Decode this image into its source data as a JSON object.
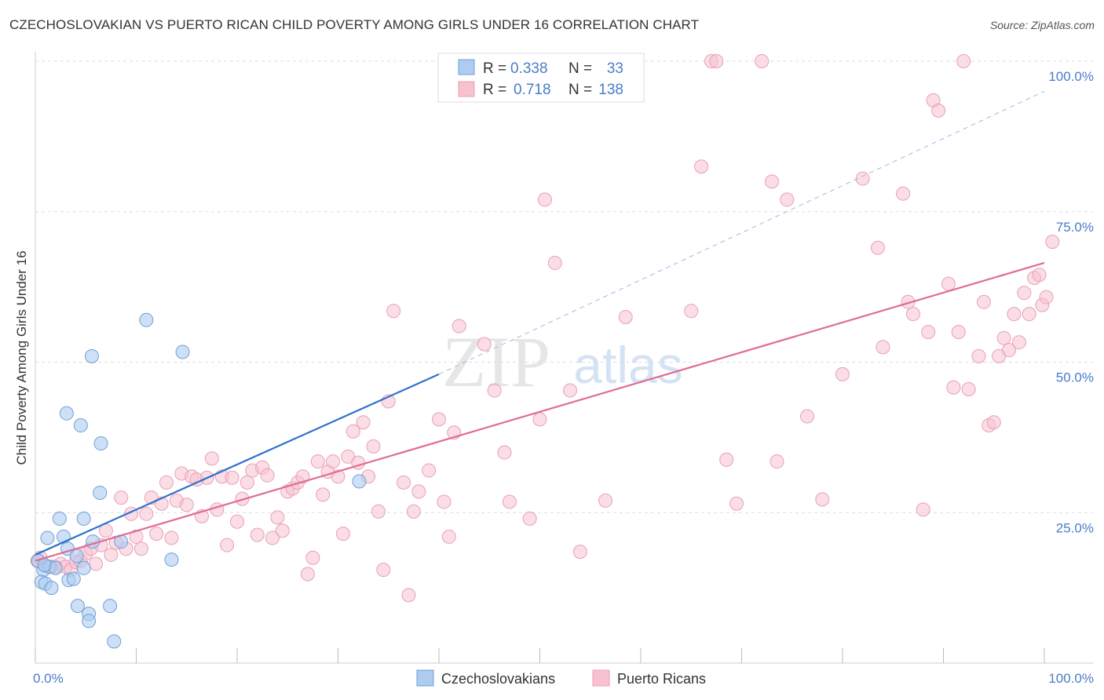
{
  "title": "CZECHOSLOVAKIAN VS PUERTO RICAN CHILD POVERTY AMONG GIRLS UNDER 16 CORRELATION CHART",
  "source": "Source: ZipAtlas.com",
  "watermark": {
    "zip": "ZIP",
    "atlas": "atlas"
  },
  "colors": {
    "blue_fill": "#aecbf0",
    "blue_stroke": "#6f9fd8",
    "blue_line": "#2e72cc",
    "pink_fill": "#f7c1d0",
    "pink_stroke": "#e8a0b5",
    "pink_line": "#e06c94",
    "tick_label": "#4a7cc9",
    "grid": "#dddddd"
  },
  "stats_box": {
    "rows": [
      {
        "r_label": "R =",
        "r_value": "0.338",
        "n_label": "N =",
        "n_value": "33",
        "series": "Czechoslovakians"
      },
      {
        "r_label": "R =",
        "r_value": "0.718",
        "n_label": "N =",
        "n_value": "138",
        "series": "Puerto Ricans"
      }
    ]
  },
  "chart_data": {
    "type": "scatter",
    "title": "CZECHOSLOVAKIAN VS PUERTO RICAN CHILD POVERTY AMONG GIRLS UNDER 16 CORRELATION CHART",
    "xlabel": "",
    "ylabel": "Child Poverty Among Girls Under 16",
    "xlim": [
      0,
      100
    ],
    "ylim": [
      0,
      100
    ],
    "x_tick_labels": [
      "0.0%",
      "100.0%"
    ],
    "y_tick_labels": [
      {
        "value": 25,
        "label": "25.0%"
      },
      {
        "value": 50,
        "label": "50.0%"
      },
      {
        "value": 75,
        "label": "75.0%"
      },
      {
        "value": 100,
        "label": "100.0%"
      }
    ],
    "grid": true,
    "legend": [
      "Czechoslovakians",
      "Puerto Ricans"
    ],
    "series": [
      {
        "name": "Czechoslovakians",
        "color": "#aecbf0",
        "trend": {
          "x0": 0,
          "y0": 18,
          "x1": 40,
          "y1": 48,
          "extend_to": 100,
          "extended_y": 95
        },
        "points": [
          [
            0.3,
            17.0
          ],
          [
            0.8,
            15.5
          ],
          [
            0.6,
            13.5
          ],
          [
            1.0,
            13.2
          ],
          [
            1.4,
            16.0
          ],
          [
            1.6,
            12.5
          ],
          [
            1.2,
            20.8
          ],
          [
            2.0,
            15.8
          ],
          [
            2.4,
            24.0
          ],
          [
            2.8,
            21.0
          ],
          [
            3.3,
            13.8
          ],
          [
            3.2,
            19.0
          ],
          [
            3.8,
            14.0
          ],
          [
            4.1,
            17.8
          ],
          [
            4.8,
            15.8
          ],
          [
            4.8,
            24.0
          ],
          [
            5.7,
            20.2
          ],
          [
            5.6,
            51.0
          ],
          [
            3.1,
            41.5
          ],
          [
            4.5,
            39.5
          ],
          [
            6.5,
            36.5
          ],
          [
            6.4,
            28.3
          ],
          [
            4.2,
            9.5
          ],
          [
            5.3,
            8.2
          ],
          [
            5.3,
            7.0
          ],
          [
            7.4,
            9.5
          ],
          [
            7.8,
            3.6
          ],
          [
            8.5,
            20.2
          ],
          [
            11.0,
            57.0
          ],
          [
            13.5,
            17.2
          ],
          [
            14.6,
            51.7
          ],
          [
            32.1,
            30.2
          ],
          [
            0.9,
            16.3
          ]
        ]
      },
      {
        "name": "Puerto Ricans",
        "color": "#f7c1d0",
        "trend": {
          "x0": 0,
          "y0": 17,
          "x1": 100,
          "y1": 66.5
        },
        "points": [
          [
            0.2,
            17.0
          ],
          [
            0.5,
            17.5
          ],
          [
            1.0,
            16.2
          ],
          [
            1.5,
            16.0
          ],
          [
            2.0,
            16.0
          ],
          [
            2.5,
            16.5
          ],
          [
            3.0,
            16.0
          ],
          [
            3.5,
            15.5
          ],
          [
            4.0,
            16.8
          ],
          [
            4.5,
            17.0
          ],
          [
            5.0,
            18.2
          ],
          [
            5.5,
            19.0
          ],
          [
            6.0,
            16.5
          ],
          [
            6.5,
            19.6
          ],
          [
            7.0,
            22.0
          ],
          [
            7.5,
            18.0
          ],
          [
            8.0,
            20.0
          ],
          [
            8.5,
            27.5
          ],
          [
            9.0,
            19.0
          ],
          [
            9.5,
            24.8
          ],
          [
            10.0,
            21.0
          ],
          [
            10.5,
            19.0
          ],
          [
            11.0,
            24.8
          ],
          [
            11.5,
            27.5
          ],
          [
            12.0,
            21.5
          ],
          [
            12.5,
            26.5
          ],
          [
            13.0,
            30.0
          ],
          [
            13.5,
            20.8
          ],
          [
            14.0,
            27.0
          ],
          [
            14.5,
            31.5
          ],
          [
            15.0,
            26.3
          ],
          [
            15.5,
            31.0
          ],
          [
            16.0,
            30.5
          ],
          [
            16.5,
            24.4
          ],
          [
            17.0,
            30.8
          ],
          [
            17.5,
            34.0
          ],
          [
            18.0,
            25.5
          ],
          [
            18.5,
            31.0
          ],
          [
            19.0,
            19.6
          ],
          [
            19.5,
            30.8
          ],
          [
            20.0,
            23.5
          ],
          [
            20.5,
            27.3
          ],
          [
            21.0,
            30.0
          ],
          [
            21.5,
            32.0
          ],
          [
            22.0,
            21.3
          ],
          [
            22.5,
            32.5
          ],
          [
            23.0,
            31.2
          ],
          [
            23.5,
            20.8
          ],
          [
            24.0,
            24.2
          ],
          [
            24.5,
            22.0
          ],
          [
            25.0,
            28.5
          ],
          [
            25.5,
            29.0
          ],
          [
            26.0,
            30.0
          ],
          [
            26.5,
            31.0
          ],
          [
            27.0,
            14.8
          ],
          [
            27.5,
            17.5
          ],
          [
            28.0,
            33.5
          ],
          [
            28.5,
            28.0
          ],
          [
            29.0,
            31.8
          ],
          [
            29.5,
            33.5
          ],
          [
            30.0,
            31.0
          ],
          [
            30.5,
            21.5
          ],
          [
            31.0,
            34.3
          ],
          [
            31.5,
            38.5
          ],
          [
            32.0,
            33.3
          ],
          [
            32.5,
            40.0
          ],
          [
            33.0,
            31.0
          ],
          [
            33.5,
            36.0
          ],
          [
            34.0,
            25.2
          ],
          [
            34.5,
            15.5
          ],
          [
            35.0,
            43.5
          ],
          [
            35.5,
            58.5
          ],
          [
            36.5,
            30.0
          ],
          [
            37.0,
            11.3
          ],
          [
            37.5,
            25.2
          ],
          [
            38.0,
            28.5
          ],
          [
            39.0,
            32.0
          ],
          [
            40.0,
            40.5
          ],
          [
            40.5,
            26.8
          ],
          [
            41.0,
            21.0
          ],
          [
            41.5,
            38.3
          ],
          [
            42.0,
            56.0
          ],
          [
            44.5,
            53.0
          ],
          [
            45.5,
            45.3
          ],
          [
            46.5,
            35.0
          ],
          [
            47.0,
            26.8
          ],
          [
            49.0,
            24.0
          ],
          [
            50.0,
            40.5
          ],
          [
            50.5,
            77.0
          ],
          [
            51.5,
            66.5
          ],
          [
            53.0,
            45.3
          ],
          [
            54.0,
            18.5
          ],
          [
            56.5,
            27.0
          ],
          [
            58.5,
            57.5
          ],
          [
            65.0,
            58.5
          ],
          [
            66.0,
            82.5
          ],
          [
            67.0,
            100.0
          ],
          [
            67.5,
            100.0
          ],
          [
            68.5,
            33.8
          ],
          [
            69.5,
            26.5
          ],
          [
            72.0,
            100.0
          ],
          [
            73.0,
            80.0
          ],
          [
            73.5,
            33.5
          ],
          [
            74.5,
            77.0
          ],
          [
            76.5,
            41.0
          ],
          [
            78.0,
            27.2
          ],
          [
            80.0,
            48.0
          ],
          [
            82.0,
            80.5
          ],
          [
            83.5,
            69.0
          ],
          [
            84.0,
            52.5
          ],
          [
            86.0,
            78.0
          ],
          [
            86.5,
            60.0
          ],
          [
            87.0,
            58.0
          ],
          [
            88.0,
            25.5
          ],
          [
            88.5,
            55.0
          ],
          [
            89.0,
            93.5
          ],
          [
            89.5,
            91.8
          ],
          [
            90.5,
            63.0
          ],
          [
            91.0,
            45.8
          ],
          [
            91.5,
            55.0
          ],
          [
            92.0,
            100.0
          ],
          [
            92.5,
            45.5
          ],
          [
            93.5,
            51.0
          ],
          [
            94.0,
            60.0
          ],
          [
            94.5,
            39.5
          ],
          [
            95.0,
            40.0
          ],
          [
            95.5,
            51.0
          ],
          [
            96.0,
            54.0
          ],
          [
            96.5,
            52.0
          ],
          [
            97.0,
            58.0
          ],
          [
            97.5,
            53.3
          ],
          [
            98.0,
            61.5
          ],
          [
            98.5,
            58.0
          ],
          [
            99.0,
            64.0
          ],
          [
            99.5,
            64.5
          ],
          [
            99.8,
            59.5
          ],
          [
            100.2,
            60.8
          ],
          [
            100.8,
            70.0
          ]
        ]
      }
    ]
  }
}
